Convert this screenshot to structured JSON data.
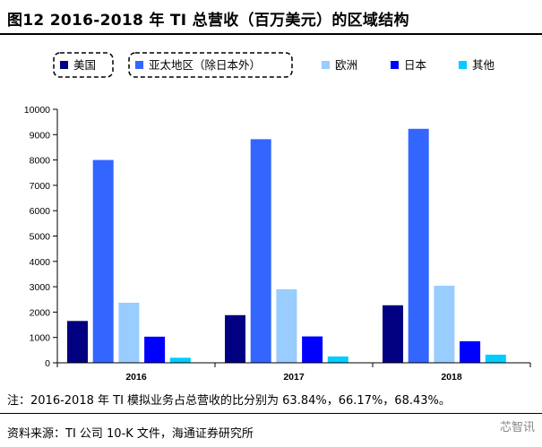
{
  "header": {
    "title": "图12 2016-2018 年 TI 总营收（百万美元）的区域结构"
  },
  "chart_data": {
    "type": "bar",
    "title": "",
    "xlabel": "",
    "ylabel": "",
    "categories": [
      "2016",
      "2017",
      "2018"
    ],
    "ylim": [
      0,
      10000
    ],
    "yticks": [
      0,
      1000,
      2000,
      3000,
      4000,
      5000,
      6000,
      7000,
      8000,
      9000,
      10000
    ],
    "grid": false,
    "legend_position": "top",
    "series": [
      {
        "name": "美国",
        "color": "#000080",
        "values": [
          1650,
          1880,
          2270
        ]
      },
      {
        "name": "亚太地区（除日本外）",
        "color": "#3366ff",
        "values": [
          8000,
          8820,
          9230
        ]
      },
      {
        "name": "欧洲",
        "color": "#99ccff",
        "values": [
          2370,
          2900,
          3040
        ]
      },
      {
        "name": "日本",
        "color": "#0000ff",
        "values": [
          1030,
          1040,
          850
        ]
      },
      {
        "name": "其他",
        "color": "#00ccff",
        "values": [
          200,
          250,
          320
        ]
      }
    ]
  },
  "footer": {
    "note": "注：2016-2018 年 TI 模拟业务占总营收的比分别为 63.84%，66.17%，68.43%。",
    "source": "资料来源：TI 公司 10-K 文件，海通证券研究所",
    "watermark": "芯智讯"
  }
}
